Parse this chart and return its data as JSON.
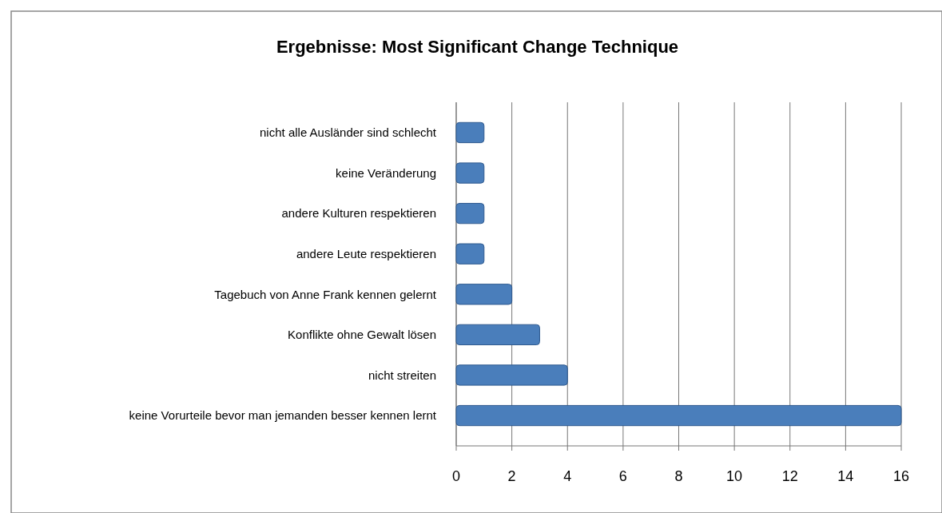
{
  "chart_data": {
    "type": "bar",
    "title": "Ergebnisse: Most Significant Change Technique",
    "orientation": "horizontal",
    "categories": [
      "nicht alle Ausländer sind schlecht",
      "keine Veränderung",
      "andere Kulturen respektieren",
      "andere Leute respektieren",
      "Tagebuch von Anne Frank kennen gelernt",
      "Konflikte ohne Gewalt lösen",
      "nicht streiten",
      "keine Vorurteile bevor man jemanden besser kennen lernt"
    ],
    "values": [
      1,
      1,
      1,
      1,
      2,
      3,
      4,
      16
    ],
    "color": "#4a7ebb",
    "xlim": [
      0,
      16
    ],
    "xticks": [
      0,
      2,
      4,
      6,
      8,
      10,
      12,
      14,
      16
    ],
    "grid": "x"
  }
}
